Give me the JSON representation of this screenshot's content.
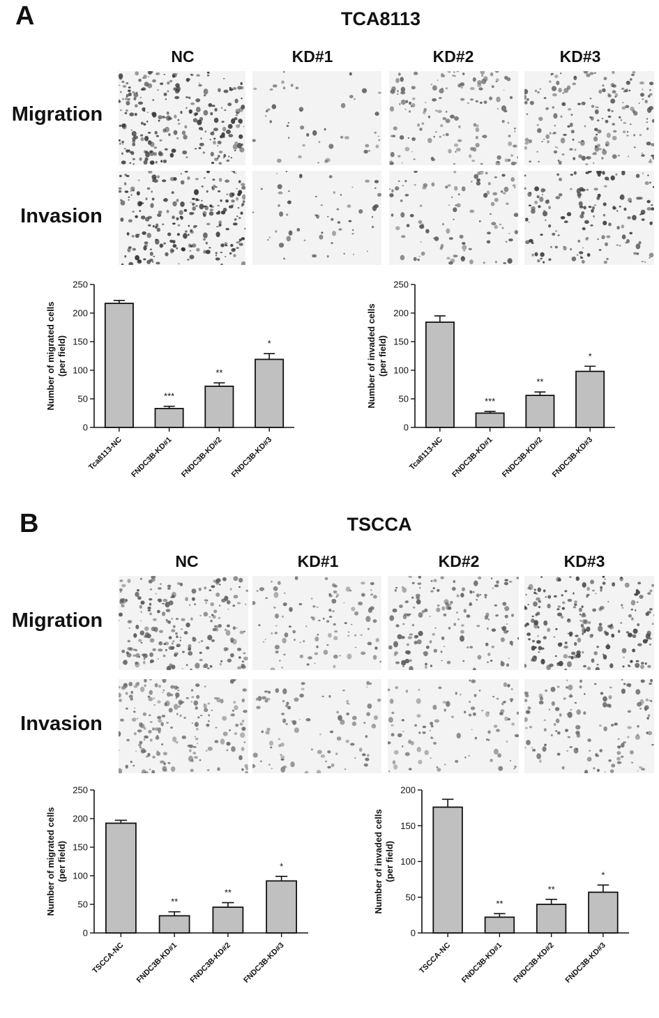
{
  "panels": [
    {
      "letter": "A",
      "title": "TCA8113",
      "columns": [
        "NC",
        "KD#1",
        "KD#2",
        "KD#3"
      ],
      "rows": [
        "Migration",
        "Invasion"
      ],
      "micrographs": [
        {
          "name": "tca8113-migration-nc",
          "density": 0.95,
          "tone": "#3a3a3a"
        },
        {
          "name": "tca8113-migration-kd1",
          "density": 0.18,
          "tone": "#5a5a5a"
        },
        {
          "name": "tca8113-migration-kd2",
          "density": 0.55,
          "tone": "#666666"
        },
        {
          "name": "tca8113-migration-kd3",
          "density": 0.7,
          "tone": "#555555"
        },
        {
          "name": "tca8113-invasion-nc",
          "density": 0.9,
          "tone": "#333333"
        },
        {
          "name": "tca8113-invasion-kd1",
          "density": 0.22,
          "tone": "#4d4d4d"
        },
        {
          "name": "tca8113-invasion-kd2",
          "density": 0.4,
          "tone": "#555555"
        },
        {
          "name": "tca8113-invasion-kd3",
          "density": 0.6,
          "tone": "#3d3d3d"
        }
      ]
    },
    {
      "letter": "B",
      "title": "TSCCA",
      "columns": [
        "NC",
        "KD#1",
        "KD#2",
        "KD#3"
      ],
      "rows": [
        "Migration",
        "Invasion"
      ],
      "micrographs": [
        {
          "name": "tscca-migration-nc",
          "density": 0.85,
          "tone": "#5a5a5a"
        },
        {
          "name": "tscca-migration-kd1",
          "density": 0.4,
          "tone": "#6a6a6a"
        },
        {
          "name": "tscca-migration-kd2",
          "density": 0.6,
          "tone": "#5d5d5d"
        },
        {
          "name": "tscca-migration-kd3",
          "density": 0.8,
          "tone": "#444444"
        },
        {
          "name": "tscca-invasion-nc",
          "density": 0.75,
          "tone": "#707070"
        },
        {
          "name": "tscca-invasion-kd1",
          "density": 0.35,
          "tone": "#6e6e6e"
        },
        {
          "name": "tscca-invasion-kd2",
          "density": 0.38,
          "tone": "#707070"
        },
        {
          "name": "tscca-invasion-kd3",
          "density": 0.5,
          "tone": "#666666"
        }
      ]
    }
  ],
  "chart_data": [
    {
      "type": "bar",
      "categories": [
        "Tca8113-NC",
        "FNDC3B-KD#1",
        "FNDC3B-KD#2",
        "FNDC3B-KD#3"
      ],
      "values": [
        217,
        33,
        72,
        119
      ],
      "errors": [
        5,
        4,
        6,
        10
      ],
      "significance": [
        "",
        "***",
        "**",
        "*"
      ],
      "title": "",
      "xlabel": "",
      "ylabel": "Number of migrated cells (per field)",
      "ylabel_lines": [
        "Number of migrated cells",
        "(per field)"
      ],
      "ylim": [
        0,
        250
      ],
      "yticks": [
        0,
        50,
        100,
        150,
        200,
        250
      ],
      "bar_color": "#c0c0c0"
    },
    {
      "type": "bar",
      "categories": [
        "Tca8113-NC",
        "FNDC3B-KD#1",
        "FNDC3B-KD#2",
        "FNDC3B-KD#3"
      ],
      "values": [
        184,
        25,
        56,
        98
      ],
      "errors": [
        11,
        3,
        6,
        9
      ],
      "significance": [
        "",
        "***",
        "**",
        "*"
      ],
      "title": "",
      "xlabel": "",
      "ylabel": "Number of invaded cells (per field)",
      "ylabel_lines": [
        "Number of invaded cells",
        "(per field)"
      ],
      "ylim": [
        0,
        250
      ],
      "yticks": [
        0,
        50,
        100,
        150,
        200,
        250
      ],
      "bar_color": "#c0c0c0"
    },
    {
      "type": "bar",
      "categories": [
        "TSCCA-NC",
        "FNDC3B-KD#1",
        "FNDC3B-KD#2",
        "FNDC3B-KD#3"
      ],
      "values": [
        192,
        30,
        45,
        91
      ],
      "errors": [
        5,
        7,
        8,
        8
      ],
      "significance": [
        "",
        "**",
        "**",
        "*"
      ],
      "title": "",
      "xlabel": "",
      "ylabel": "Number of migrated cells (per field)",
      "ylabel_lines": [
        "Number of migrated cells",
        "(per field)"
      ],
      "ylim": [
        0,
        250
      ],
      "yticks": [
        0,
        50,
        100,
        150,
        200,
        250
      ],
      "bar_color": "#c0c0c0"
    },
    {
      "type": "bar",
      "categories": [
        "TSCCA-NC",
        "FNDC3B-KD#1",
        "FNDC3B-KD#2",
        "FNDC3B-KD#3"
      ],
      "values": [
        176,
        22,
        40,
        57
      ],
      "errors": [
        11,
        5,
        7,
        10
      ],
      "significance": [
        "",
        "**",
        "**",
        "*"
      ],
      "title": "",
      "xlabel": "",
      "ylabel": "Number of invaded cells (per field)",
      "ylabel_lines": [
        "Number of invaded cells",
        "(per field)"
      ],
      "ylim": [
        0,
        200
      ],
      "yticks": [
        0,
        50,
        100,
        150,
        200
      ],
      "bar_color": "#c0c0c0"
    }
  ]
}
